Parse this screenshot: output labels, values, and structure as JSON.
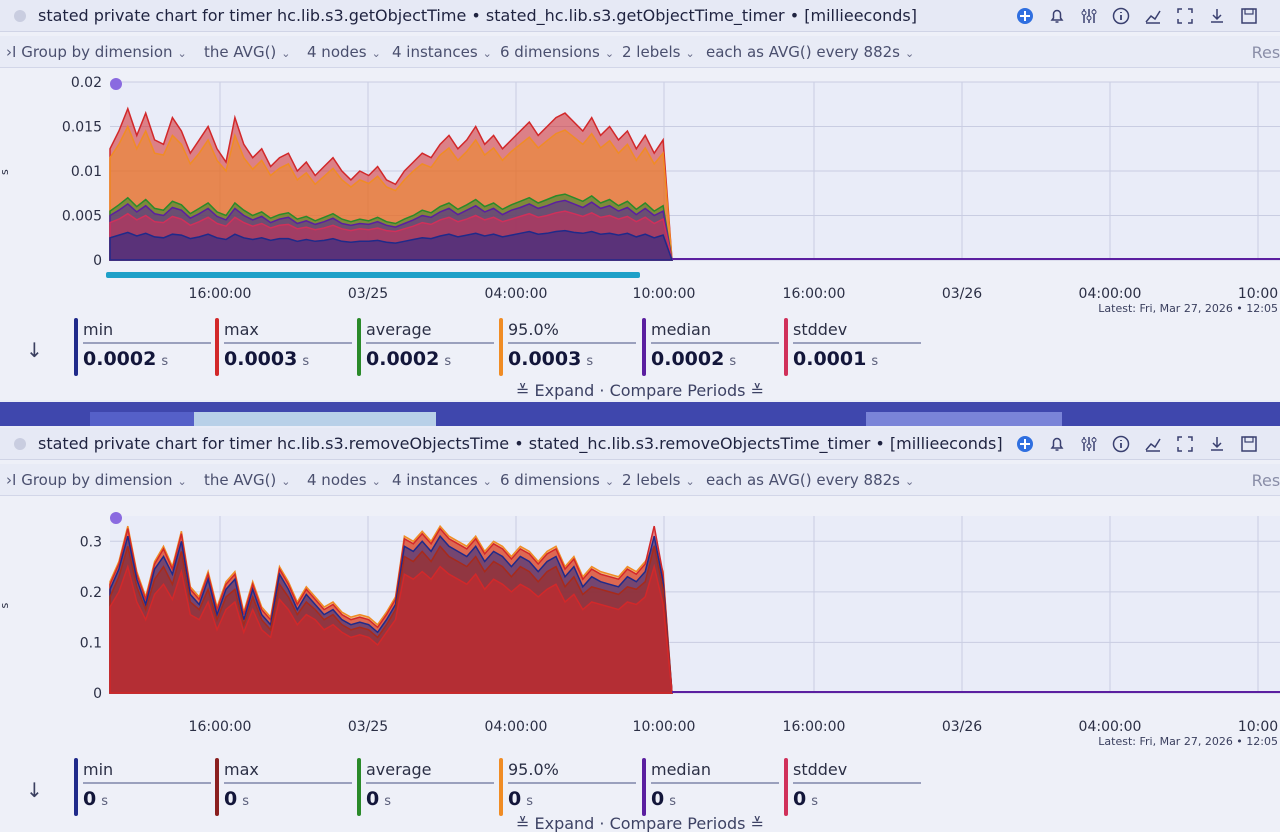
{
  "panels": [
    {
      "title": "stated private chart for timer hc.lib.s3.getObjectTime • stated_hc.lib.s3.getObjectTime_timer • [millieeconds]",
      "groupbar": {
        "group_by": "Group by dimension",
        "aggregate": "the AVG()",
        "nodes": "4 nodes",
        "instances": "4 instances",
        "dimensions": "6 dimensions",
        "labels": "2 lebels",
        "each_as": "each as AVG() every 882s",
        "reset": "Rese"
      },
      "y_unit": "s",
      "latest": "Latest:  Fri, Mar 27, 2026 • 12:05",
      "stats": [
        {
          "label": "min",
          "value": "0.0002",
          "unit": "s",
          "color": "#1f2a8a"
        },
        {
          "label": "max",
          "value": "0.0003",
          "unit": "s",
          "color": "#d2282a"
        },
        {
          "label": "average",
          "value": "0.0002",
          "unit": "s",
          "color": "#2a8a2a"
        },
        {
          "label": "95.0%",
          "value": "0.0003",
          "unit": "s",
          "color": "#f08c24"
        },
        {
          "label": "median",
          "value": "0.0002",
          "unit": "s",
          "color": "#5b1fa0"
        },
        {
          "label": "stddev",
          "value": "0.0001",
          "unit": "s",
          "color": "#d0305a"
        }
      ],
      "expand": "Expand · Compare Periods"
    },
    {
      "title": "stated private chart for timer hc.lib.s3.removeObjectsTime • stated_hc.lib.s3.removeObjectsTime_timer • [millieeconds]",
      "groupbar": {
        "group_by": "Group by dimension",
        "aggregate": "the AVG()",
        "nodes": "4 nodes",
        "instances": "4 instances",
        "dimensions": "6 dimensions",
        "labels": "2 lebels",
        "each_as": "each as AVG() every 882s",
        "reset": "Rese"
      },
      "y_unit": "s",
      "latest": "Latest:  Fri, Mar 27, 2026 • 12:05",
      "stats": [
        {
          "label": "min",
          "value": "0",
          "unit": "s",
          "color": "#1f2a8a"
        },
        {
          "label": "max",
          "value": "0",
          "unit": "s",
          "color": "#8a1f1f"
        },
        {
          "label": "average",
          "value": "0",
          "unit": "s",
          "color": "#2a8a2a"
        },
        {
          "label": "95.0%",
          "value": "0",
          "unit": "s",
          "color": "#f08c24"
        },
        {
          "label": "median",
          "value": "0",
          "unit": "s",
          "color": "#5b1fa0"
        },
        {
          "label": "stddev",
          "value": "0",
          "unit": "s",
          "color": "#d0305a"
        }
      ],
      "expand": "Expand · Compare Periods"
    }
  ],
  "chart_data": [
    {
      "type": "area",
      "title": "",
      "xlabel": "",
      "ylabel": "s",
      "ylim": [
        0,
        0.02
      ],
      "y_ticks": [
        "0",
        "0.005",
        "0.01",
        "0.015",
        "0.02"
      ],
      "x_ticks": [
        "16:00:00",
        "03/25",
        "04:00:00",
        "10:00:00",
        "16:00:00",
        "03/26",
        "04:00:00",
        "10:00"
      ],
      "x": [
        0,
        1,
        2,
        3,
        4,
        5,
        6,
        7,
        8,
        9,
        10,
        11,
        12,
        13,
        14,
        15,
        16,
        17,
        18,
        19,
        20,
        21,
        22,
        23,
        24,
        25,
        26,
        27,
        28,
        29,
        30,
        31,
        32,
        33,
        34,
        35,
        36,
        37,
        38,
        39,
        40,
        41,
        42,
        43,
        44,
        45,
        46,
        47,
        48,
        49,
        50,
        51,
        52,
        53,
        54,
        55,
        56,
        57,
        58,
        59,
        60,
        61,
        62,
        63
      ],
      "series": [
        {
          "name": "max",
          "color": "#d2282a",
          "values": [
            0.0125,
            0.0145,
            0.017,
            0.014,
            0.0165,
            0.0135,
            0.013,
            0.016,
            0.0145,
            0.012,
            0.0135,
            0.015,
            0.0125,
            0.011,
            0.016,
            0.013,
            0.0115,
            0.0125,
            0.0105,
            0.0115,
            0.012,
            0.01,
            0.011,
            0.0095,
            0.0105,
            0.0115,
            0.01,
            0.009,
            0.01,
            0.0095,
            0.0105,
            0.009,
            0.0085,
            0.01,
            0.011,
            0.012,
            0.0115,
            0.013,
            0.014,
            0.0125,
            0.0135,
            0.015,
            0.013,
            0.014,
            0.0125,
            0.0135,
            0.0145,
            0.0155,
            0.014,
            0.015,
            0.016,
            0.0165,
            0.0155,
            0.0145,
            0.016,
            0.014,
            0.015,
            0.0135,
            0.0145,
            0.0125,
            0.014,
            0.012,
            0.0135,
            0.0
          ]
        },
        {
          "name": "95.0%",
          "color": "#f08c24",
          "values": [
            0.0115,
            0.013,
            0.015,
            0.0125,
            0.0145,
            0.012,
            0.0118,
            0.014,
            0.013,
            0.0108,
            0.012,
            0.0135,
            0.0112,
            0.01,
            0.014,
            0.0115,
            0.0102,
            0.0112,
            0.0095,
            0.0103,
            0.0108,
            0.009,
            0.0098,
            0.0085,
            0.0094,
            0.0103,
            0.009,
            0.0082,
            0.009,
            0.0086,
            0.0094,
            0.0082,
            0.0078,
            0.009,
            0.01,
            0.0108,
            0.0104,
            0.0118,
            0.0126,
            0.0112,
            0.0122,
            0.0135,
            0.0118,
            0.0126,
            0.0112,
            0.0122,
            0.013,
            0.0138,
            0.0126,
            0.0134,
            0.0142,
            0.0146,
            0.0138,
            0.013,
            0.0142,
            0.0126,
            0.0134,
            0.012,
            0.013,
            0.0112,
            0.0126,
            0.0108,
            0.012,
            0.0
          ]
        },
        {
          "name": "average",
          "color": "#2a8a2a",
          "values": [
            0.0055,
            0.0062,
            0.007,
            0.006,
            0.0068,
            0.0058,
            0.0056,
            0.0066,
            0.0062,
            0.0052,
            0.0058,
            0.0064,
            0.0054,
            0.005,
            0.0064,
            0.0056,
            0.005,
            0.0054,
            0.0047,
            0.0051,
            0.0053,
            0.0046,
            0.0049,
            0.0044,
            0.0048,
            0.0052,
            0.0046,
            0.0043,
            0.0046,
            0.0044,
            0.0048,
            0.0043,
            0.0041,
            0.0046,
            0.005,
            0.0056,
            0.0053,
            0.006,
            0.0064,
            0.0057,
            0.0062,
            0.0068,
            0.006,
            0.0064,
            0.0057,
            0.0062,
            0.0066,
            0.007,
            0.0064,
            0.0068,
            0.0072,
            0.0074,
            0.007,
            0.0066,
            0.0072,
            0.0064,
            0.0068,
            0.0061,
            0.0066,
            0.0057,
            0.0064,
            0.0055,
            0.0061,
            0.0
          ]
        },
        {
          "name": "median",
          "color": "#5b1fa0",
          "values": [
            0.005,
            0.0056,
            0.0063,
            0.0054,
            0.0061,
            0.0052,
            0.005,
            0.0059,
            0.0056,
            0.0047,
            0.0052,
            0.0058,
            0.0049,
            0.0045,
            0.0058,
            0.005,
            0.0045,
            0.0049,
            0.0042,
            0.0046,
            0.0048,
            0.0041,
            0.0044,
            0.004,
            0.0043,
            0.0047,
            0.0041,
            0.0039,
            0.0041,
            0.004,
            0.0043,
            0.0039,
            0.0037,
            0.0041,
            0.0045,
            0.005,
            0.0048,
            0.0054,
            0.0058,
            0.0051,
            0.0056,
            0.0061,
            0.0054,
            0.0058,
            0.0051,
            0.0056,
            0.0059,
            0.0063,
            0.0058,
            0.0061,
            0.0065,
            0.0067,
            0.0063,
            0.0059,
            0.0065,
            0.0058,
            0.0061,
            0.0055,
            0.0059,
            0.0051,
            0.0058,
            0.005,
            0.0055,
            0.0
          ]
        },
        {
          "name": "stddev",
          "color": "#d0305a",
          "values": [
            0.0042,
            0.0046,
            0.0052,
            0.0045,
            0.005,
            0.0043,
            0.0042,
            0.0049,
            0.0046,
            0.0039,
            0.0043,
            0.0048,
            0.0041,
            0.0038,
            0.0048,
            0.0042,
            0.0038,
            0.0041,
            0.0036,
            0.0039,
            0.004,
            0.0035,
            0.0037,
            0.0034,
            0.0036,
            0.0039,
            0.0035,
            0.0033,
            0.0035,
            0.0034,
            0.0036,
            0.0033,
            0.0032,
            0.0035,
            0.0038,
            0.0042,
            0.004,
            0.0045,
            0.0048,
            0.0043,
            0.0046,
            0.005,
            0.0045,
            0.0048,
            0.0043,
            0.0046,
            0.0049,
            0.0052,
            0.0048,
            0.005,
            0.0053,
            0.0055,
            0.0052,
            0.0049,
            0.0053,
            0.0048,
            0.005,
            0.0046,
            0.0049,
            0.0043,
            0.0048,
            0.0041,
            0.0046,
            0.0
          ]
        },
        {
          "name": "min",
          "color": "#1f2a8a",
          "values": [
            0.0025,
            0.0028,
            0.0031,
            0.0027,
            0.003,
            0.0026,
            0.0025,
            0.0029,
            0.0028,
            0.0024,
            0.0026,
            0.0029,
            0.0025,
            0.0023,
            0.0029,
            0.0025,
            0.0023,
            0.0025,
            0.0022,
            0.0024,
            0.0024,
            0.0021,
            0.0023,
            0.0021,
            0.0022,
            0.0024,
            0.0021,
            0.002,
            0.0021,
            0.0021,
            0.0022,
            0.002,
            0.0019,
            0.0021,
            0.0023,
            0.0025,
            0.0024,
            0.0027,
            0.0029,
            0.0026,
            0.0028,
            0.003,
            0.0027,
            0.0029,
            0.0026,
            0.0028,
            0.003,
            0.0032,
            0.0029,
            0.003,
            0.0032,
            0.0033,
            0.0031,
            0.003,
            0.0032,
            0.0029,
            0.003,
            0.0028,
            0.003,
            0.0026,
            0.0029,
            0.0025,
            0.0028,
            0.0
          ]
        }
      ]
    },
    {
      "type": "area",
      "title": "",
      "xlabel": "",
      "ylabel": "s",
      "ylim": [
        0,
        0.35
      ],
      "y_ticks": [
        "0",
        "0.1",
        "0.2",
        "0.3"
      ],
      "x_ticks": [
        "16:00:00",
        "03/25",
        "04:00:00",
        "10:00:00",
        "16:00:00",
        "03/26",
        "04:00:00",
        "10:00"
      ],
      "x": [
        0,
        1,
        2,
        3,
        4,
        5,
        6,
        7,
        8,
        9,
        10,
        11,
        12,
        13,
        14,
        15,
        16,
        17,
        18,
        19,
        20,
        21,
        22,
        23,
        24,
        25,
        26,
        27,
        28,
        29,
        30,
        31,
        32,
        33,
        34,
        35,
        36,
        37,
        38,
        39,
        40,
        41,
        42,
        43,
        44,
        45,
        46,
        47,
        48,
        49,
        50,
        51,
        52,
        53,
        54,
        55,
        56,
        57,
        58,
        59,
        60,
        61,
        62,
        63
      ],
      "series": [
        {
          "name": "95.0%",
          "color": "#f08c24",
          "values": [
            0.22,
            0.26,
            0.33,
            0.24,
            0.19,
            0.26,
            0.29,
            0.25,
            0.32,
            0.21,
            0.19,
            0.24,
            0.17,
            0.22,
            0.24,
            0.16,
            0.22,
            0.17,
            0.15,
            0.25,
            0.22,
            0.18,
            0.21,
            0.19,
            0.17,
            0.18,
            0.16,
            0.15,
            0.155,
            0.15,
            0.135,
            0.16,
            0.19,
            0.31,
            0.3,
            0.32,
            0.3,
            0.33,
            0.31,
            0.3,
            0.29,
            0.31,
            0.28,
            0.3,
            0.29,
            0.27,
            0.29,
            0.28,
            0.26,
            0.28,
            0.29,
            0.25,
            0.27,
            0.23,
            0.25,
            0.24,
            0.235,
            0.23,
            0.25,
            0.24,
            0.26,
            0.29,
            0.24,
            0.0
          ]
        },
        {
          "name": "max",
          "color": "#d2282a",
          "values": [
            0.215,
            0.255,
            0.325,
            0.235,
            0.185,
            0.255,
            0.285,
            0.245,
            0.315,
            0.205,
            0.185,
            0.235,
            0.165,
            0.215,
            0.235,
            0.155,
            0.215,
            0.165,
            0.145,
            0.245,
            0.215,
            0.175,
            0.205,
            0.185,
            0.165,
            0.175,
            0.155,
            0.145,
            0.15,
            0.145,
            0.13,
            0.155,
            0.185,
            0.305,
            0.295,
            0.315,
            0.295,
            0.325,
            0.305,
            0.295,
            0.285,
            0.305,
            0.275,
            0.295,
            0.285,
            0.265,
            0.285,
            0.275,
            0.255,
            0.275,
            0.285,
            0.245,
            0.265,
            0.225,
            0.245,
            0.235,
            0.23,
            0.225,
            0.245,
            0.235,
            0.255,
            0.33,
            0.235,
            0.0
          ]
        },
        {
          "name": "min",
          "color": "#1f2a8a",
          "values": [
            0.205,
            0.245,
            0.31,
            0.225,
            0.175,
            0.245,
            0.27,
            0.235,
            0.3,
            0.195,
            0.175,
            0.225,
            0.155,
            0.205,
            0.225,
            0.145,
            0.205,
            0.155,
            0.135,
            0.235,
            0.205,
            0.165,
            0.195,
            0.175,
            0.155,
            0.165,
            0.145,
            0.135,
            0.14,
            0.135,
            0.12,
            0.145,
            0.175,
            0.29,
            0.28,
            0.3,
            0.28,
            0.31,
            0.29,
            0.28,
            0.27,
            0.29,
            0.26,
            0.28,
            0.27,
            0.25,
            0.27,
            0.26,
            0.24,
            0.26,
            0.27,
            0.23,
            0.25,
            0.21,
            0.23,
            0.22,
            0.215,
            0.21,
            0.23,
            0.22,
            0.24,
            0.31,
            0.22,
            0.0
          ]
        },
        {
          "name": "average",
          "color": "#a82a1a",
          "values": [
            0.19,
            0.23,
            0.29,
            0.21,
            0.165,
            0.225,
            0.25,
            0.215,
            0.28,
            0.18,
            0.165,
            0.205,
            0.145,
            0.19,
            0.205,
            0.135,
            0.19,
            0.145,
            0.125,
            0.215,
            0.19,
            0.155,
            0.18,
            0.165,
            0.145,
            0.155,
            0.135,
            0.125,
            0.13,
            0.125,
            0.11,
            0.135,
            0.165,
            0.27,
            0.26,
            0.28,
            0.26,
            0.29,
            0.27,
            0.26,
            0.25,
            0.27,
            0.24,
            0.26,
            0.25,
            0.23,
            0.25,
            0.24,
            0.22,
            0.24,
            0.25,
            0.21,
            0.23,
            0.195,
            0.21,
            0.205,
            0.2,
            0.195,
            0.21,
            0.205,
            0.22,
            0.29,
            0.205,
            0.0
          ]
        },
        {
          "name": "median",
          "color": "#d2282a",
          "values": [
            0.17,
            0.2,
            0.25,
            0.18,
            0.145,
            0.195,
            0.215,
            0.185,
            0.24,
            0.155,
            0.145,
            0.18,
            0.125,
            0.165,
            0.18,
            0.12,
            0.165,
            0.125,
            0.11,
            0.185,
            0.165,
            0.135,
            0.155,
            0.145,
            0.125,
            0.135,
            0.12,
            0.11,
            0.115,
            0.11,
            0.095,
            0.12,
            0.145,
            0.235,
            0.225,
            0.24,
            0.225,
            0.25,
            0.235,
            0.225,
            0.215,
            0.235,
            0.205,
            0.225,
            0.215,
            0.2,
            0.215,
            0.205,
            0.19,
            0.205,
            0.215,
            0.18,
            0.195,
            0.165,
            0.18,
            0.175,
            0.17,
            0.165,
            0.18,
            0.175,
            0.19,
            0.25,
            0.175,
            0.0
          ]
        }
      ]
    }
  ]
}
